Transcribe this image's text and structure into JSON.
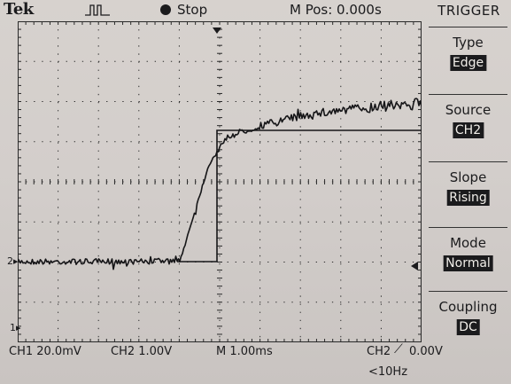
{
  "header": {
    "brand": "Tek",
    "acquisition_icon": "pulse-icon",
    "run_status": "Stop",
    "position": "M Pos: 0.000s"
  },
  "menu": {
    "title": "TRIGGER",
    "items": [
      {
        "label": "Type",
        "value": "Edge"
      },
      {
        "label": "Source",
        "value": "CH2"
      },
      {
        "label": "Slope",
        "value": "Rising"
      },
      {
        "label": "Mode",
        "value": "Normal"
      },
      {
        "label": "Coupling",
        "value": "DC"
      }
    ]
  },
  "readouts": {
    "ch1_scale": "CH1  20.0mV",
    "ch2_scale": "CH2  1.00V",
    "timebase": "M 1.00ms",
    "trigger_source": "CH2",
    "trigger_level": "0.00V",
    "frequency": "<10Hz"
  },
  "markers": {
    "ch1": "1",
    "ch2": "2"
  },
  "colors": {
    "screen": "#d3cecb",
    "trace": "#161618",
    "grid": "#2a2a2a"
  }
}
